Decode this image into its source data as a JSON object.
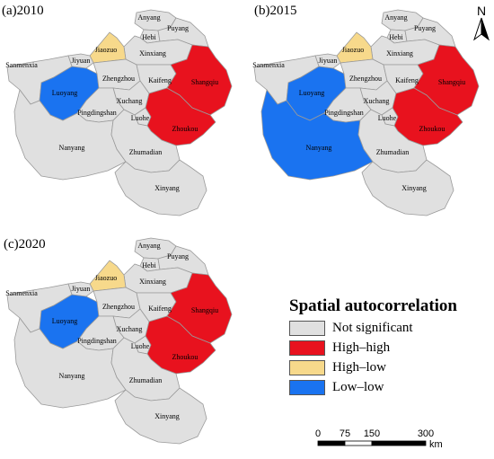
{
  "colors": {
    "not_significant": "#e0e0e0",
    "high_high": "#e8121e",
    "high_low": "#f7d98b",
    "low_low": "#1a73f0",
    "border": "#8f8f8f"
  },
  "panels": [
    {
      "title": "(a)2010",
      "low_low": [
        "Luoyang"
      ],
      "high_low": [
        "Jiaozuo"
      ],
      "high_high": [
        "Shangqiu",
        "Zhoukou"
      ]
    },
    {
      "title": "(b)2015",
      "low_low": [
        "Luoyang",
        "Nanyang"
      ],
      "high_low": [
        "Jiaozuo"
      ],
      "high_high": [
        "Shangqiu",
        "Zhoukou"
      ]
    },
    {
      "title": "(c)2020",
      "low_low": [
        "Luoyang"
      ],
      "high_low": [
        "Jiaozuo"
      ],
      "high_high": [
        "Shangqiu",
        "Zhoukou"
      ]
    }
  ],
  "cities": [
    {
      "name": "Anyang"
    },
    {
      "name": "Hebi"
    },
    {
      "name": "Puyang"
    },
    {
      "name": "Xinxiang"
    },
    {
      "name": "Jiaozuo"
    },
    {
      "name": "Jiyuan"
    },
    {
      "name": "Sanmenxia"
    },
    {
      "name": "Luoyang"
    },
    {
      "name": "Zhengzhou"
    },
    {
      "name": "Kaifeng"
    },
    {
      "name": "Shangqiu"
    },
    {
      "name": "Xuchang"
    },
    {
      "name": "Pingdingshan"
    },
    {
      "name": "Luohe"
    },
    {
      "name": "Zhoukou"
    },
    {
      "name": "Nanyang"
    },
    {
      "name": "Zhumadian"
    },
    {
      "name": "Xinyang"
    }
  ],
  "legend": {
    "title": "Spatial autocorrelation",
    "items": [
      {
        "label": "Not significant",
        "key": "not_significant"
      },
      {
        "label": "High–high",
        "key": "high_high"
      },
      {
        "label": "High–low",
        "key": "high_low"
      },
      {
        "label": "Low–low",
        "key": "low_low"
      }
    ]
  },
  "scale_bar": {
    "ticks": [
      "0",
      "75",
      "150",
      "300"
    ],
    "unit": "km"
  },
  "north_arrow": {
    "label": "N"
  }
}
